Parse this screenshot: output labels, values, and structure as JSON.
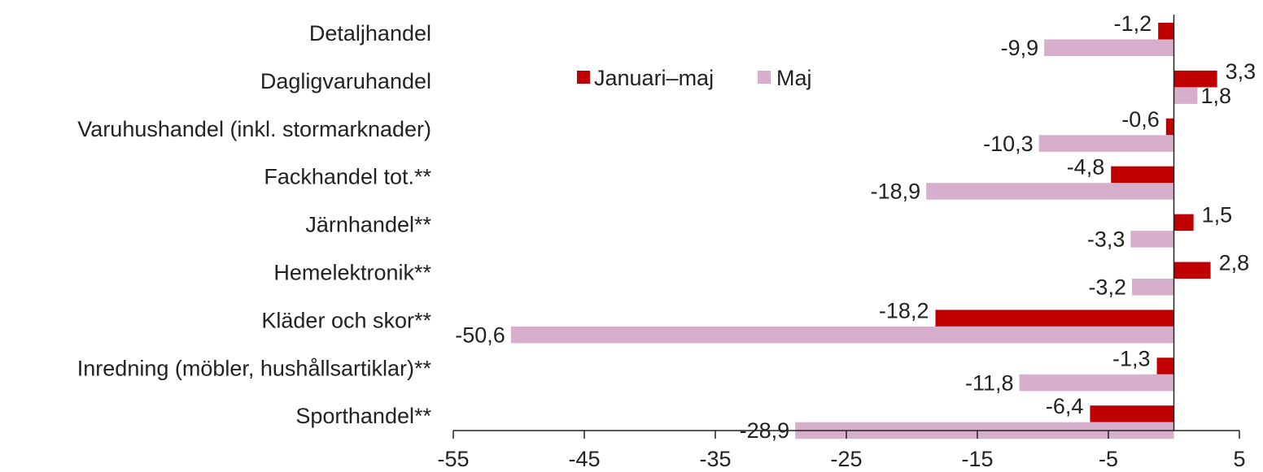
{
  "chart_data": {
    "type": "bar",
    "orientation": "horizontal",
    "categories": [
      "Detaljhandel",
      "Dagligvaruhandel",
      "Varuhushandel (inkl. stormarknader)",
      "Fackhandel tot.**",
      "Järnhandel**",
      "Hemelektronik**",
      "Kläder och skor**",
      "Inredning (möbler, hushållsartiklar)**",
      "Sporthandel**"
    ],
    "series": [
      {
        "name": "Januari–maj",
        "color": "#c00000",
        "values": [
          -1.2,
          3.3,
          -0.6,
          -4.8,
          1.5,
          2.8,
          -18.2,
          -1.3,
          -6.4
        ],
        "labels": [
          "-1,2",
          "3,3",
          "-0,6",
          "-4,8",
          "1,5",
          "2,8",
          "-18,2",
          "-1,3",
          "-6,4"
        ]
      },
      {
        "name": "Maj",
        "color": "#d8aecd",
        "values": [
          -9.9,
          1.8,
          -10.3,
          -18.9,
          -3.3,
          -3.2,
          -50.6,
          -11.8,
          -28.9
        ],
        "labels": [
          "-9,9",
          "1,8",
          "-10,3",
          "-18,9",
          "-3,3",
          "-3,2",
          "-50,6",
          "-11,8",
          "-28,9"
        ]
      }
    ],
    "xlim": [
      -55,
      5
    ],
    "xticks": [
      -55,
      -45,
      -35,
      -25,
      -15,
      -5,
      5
    ],
    "grid": false,
    "legend": "upper-left-inside",
    "title": "",
    "xlabel": "",
    "ylabel": ""
  }
}
